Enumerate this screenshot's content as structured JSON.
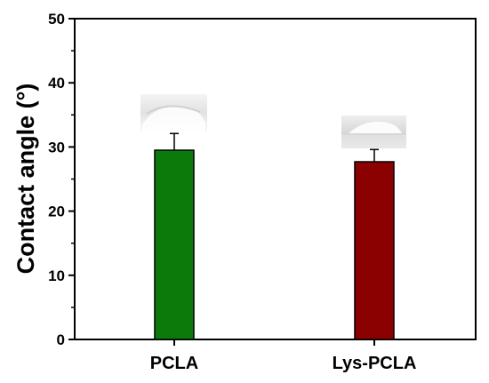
{
  "chart_data": {
    "type": "bar",
    "title": "",
    "xlabel": "",
    "ylabel": "Contact angle (°)",
    "ylim": [
      0,
      50
    ],
    "yticks": [
      0,
      10,
      20,
      30,
      40,
      50
    ],
    "categories": [
      "PCLA",
      "Lys-PCLA"
    ],
    "values": [
      29.5,
      27.7
    ],
    "errors": [
      2.6,
      1.9
    ],
    "bar_colors": [
      "#0b7a0b",
      "#8b0000"
    ],
    "grid": false,
    "legend": "none"
  }
}
